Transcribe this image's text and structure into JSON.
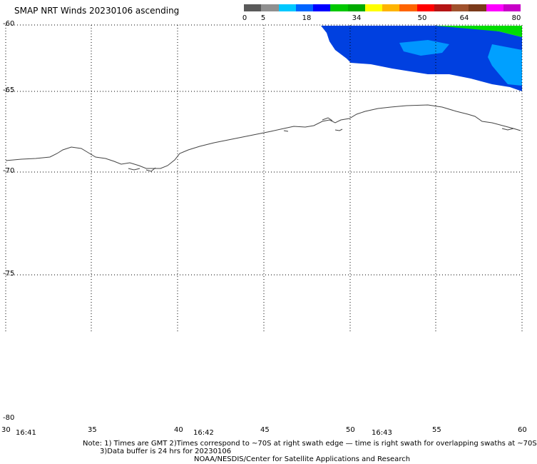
{
  "title": "SMAP NRT Winds 20230106 ascending",
  "colorbar": {
    "labels": [
      "0",
      "5",
      "18",
      "34",
      "50",
      "64",
      "80"
    ],
    "colors": [
      "#5a5a5a",
      "#909090",
      "#00c8ff",
      "#0064ff",
      "#0000ff",
      "#00c800",
      "#00aa00",
      "#ffff00",
      "#ffb400",
      "#ff6400",
      "#ff0000",
      "#b41414",
      "#a0522d",
      "#7a3a1a",
      "#ff00ff",
      "#c800c8"
    ]
  },
  "map": {
    "lat_labels": [
      "-60",
      "-65",
      "-70",
      "-75",
      "-80"
    ],
    "lon_labels": [
      "30",
      "35",
      "40",
      "45",
      "50",
      "55",
      "60"
    ],
    "time_labels": [
      "16:41",
      "16:42",
      "16:43"
    ],
    "colors": {
      "coast": "#444444",
      "grid": "#000000",
      "wind_blue": "#0050e6",
      "wind_cyan": "#00b4ff",
      "wind_green": "#00dc00"
    }
  },
  "notes": {
    "line1": "Note: 1) Times are GMT 2)Times correspond to ~70S at right swath edge — time is right swath for overlapping swaths at ~70S",
    "line2": "3)Data buffer is 24 hrs for 20230106",
    "line3": "NOAA/NESDIS/Center for Satellite Applications and Research"
  }
}
